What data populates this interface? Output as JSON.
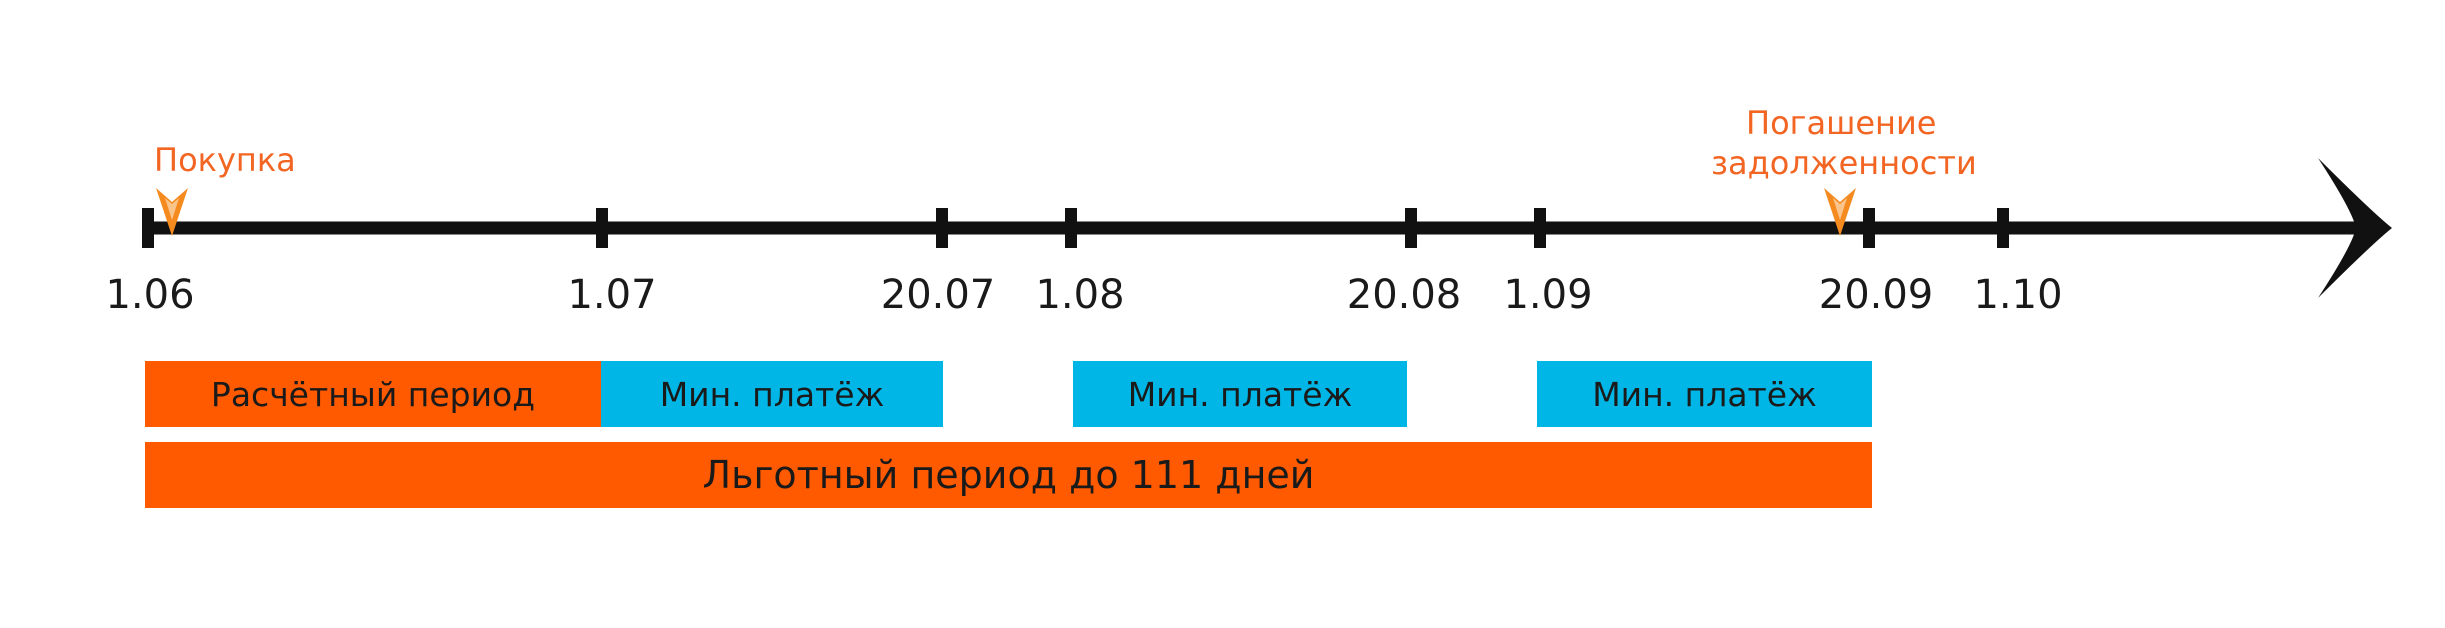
{
  "colors": {
    "orange": "#ff5a00",
    "cyan": "#00b6e6",
    "axis": "#111111",
    "event_text": "#f26522"
  },
  "events": {
    "purchase": "Покупка",
    "repayment_line1": "Погашение",
    "repayment_line2": "задолженности"
  },
  "ticks": [
    "1.06",
    "1.07",
    "20.07",
    "1.08",
    "20.08",
    "1.09",
    "20.09",
    "1.10"
  ],
  "periods": {
    "billing_period": "Расчётный период",
    "min_payment_1": "Мин. платёж",
    "min_payment_2": "Мин. платёж",
    "min_payment_3": "Мин. платёж",
    "grace_period": "Льготный период до 111 дней"
  }
}
